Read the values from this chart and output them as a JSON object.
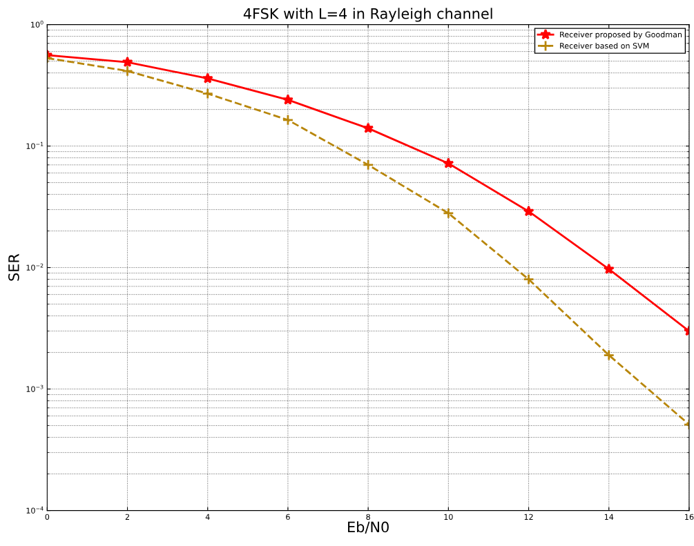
{
  "chart_data": {
    "type": "line",
    "title": "4FSK with L=4 in Rayleigh channel",
    "xlabel": "Eb/N0",
    "ylabel": "SER",
    "log": "y",
    "grid": true,
    "legend": "top right",
    "x": [
      0,
      2,
      4,
      6,
      8,
      10,
      12,
      14,
      16
    ],
    "series": [
      {
        "name": "Receiver proposed by Goodman",
        "color": "#ff0000",
        "marker": "star",
        "line_style": "solid",
        "values": [
          0.56,
          0.49,
          0.36,
          0.24,
          0.14,
          0.072,
          0.029,
          0.0097,
          0.003
        ]
      },
      {
        "name": "Receiver based on SVM",
        "color": "#b8860b",
        "marker": "cross",
        "line_style": "dashed",
        "values": [
          0.53,
          0.415,
          0.27,
          0.164,
          0.07,
          0.028,
          0.008,
          0.0019,
          0.00051
        ]
      }
    ],
    "xlim": [
      0,
      16
    ],
    "xticks": [
      0,
      2,
      4,
      6,
      8,
      10,
      12,
      14,
      16
    ],
    "ylim": [
      0.0001,
      1
    ],
    "yticks": [
      {
        "value": 0.0001,
        "label": "10$^{−4}$"
      },
      {
        "value": 0.001,
        "label": "10$^{−3}$"
      },
      {
        "value": 0.01,
        "label": "10$^{−2}$"
      },
      {
        "value": 0.1,
        "label": "10$^{−1}$"
      },
      {
        "value": 1,
        "label": "10$^{0}$"
      }
    ]
  }
}
